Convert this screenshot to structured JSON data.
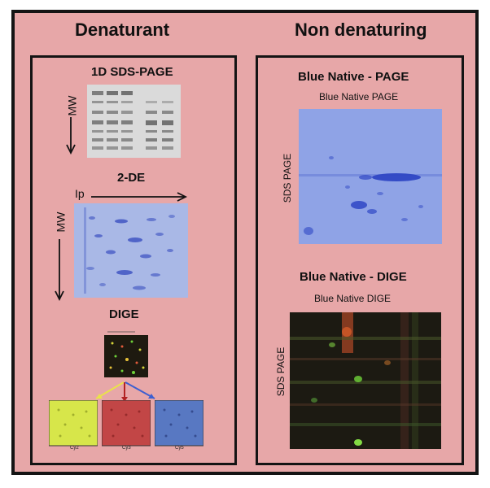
{
  "left_column": {
    "title": "Denaturant",
    "sds_page": {
      "title": "1D SDS-PAGE",
      "axis_label": "MW"
    },
    "two_de": {
      "title": "2-DE",
      "axis_x": "Ip",
      "axis_y": "MW"
    },
    "dige": {
      "title": "DIGE",
      "channels": [
        "Cy2",
        "Cy3",
        "Cy5"
      ],
      "channel_colors": [
        "#d7e64a",
        "#c24646",
        "#5878c2"
      ]
    }
  },
  "right_column": {
    "title": "Non denaturing",
    "bn_page": {
      "title": "Blue Native - PAGE",
      "subtitle": "Blue Native PAGE",
      "side_label": "SDS PAGE"
    },
    "bn_dige": {
      "title": "Blue Native - DIGE",
      "subtitle": "Blue Native DIGE",
      "side_label": "SDS PAGE"
    }
  },
  "colors": {
    "background": "#e7a7a8",
    "border": "#141414",
    "gel_blue": "#8fa3e6",
    "dige_dark": "#1c1a12"
  }
}
